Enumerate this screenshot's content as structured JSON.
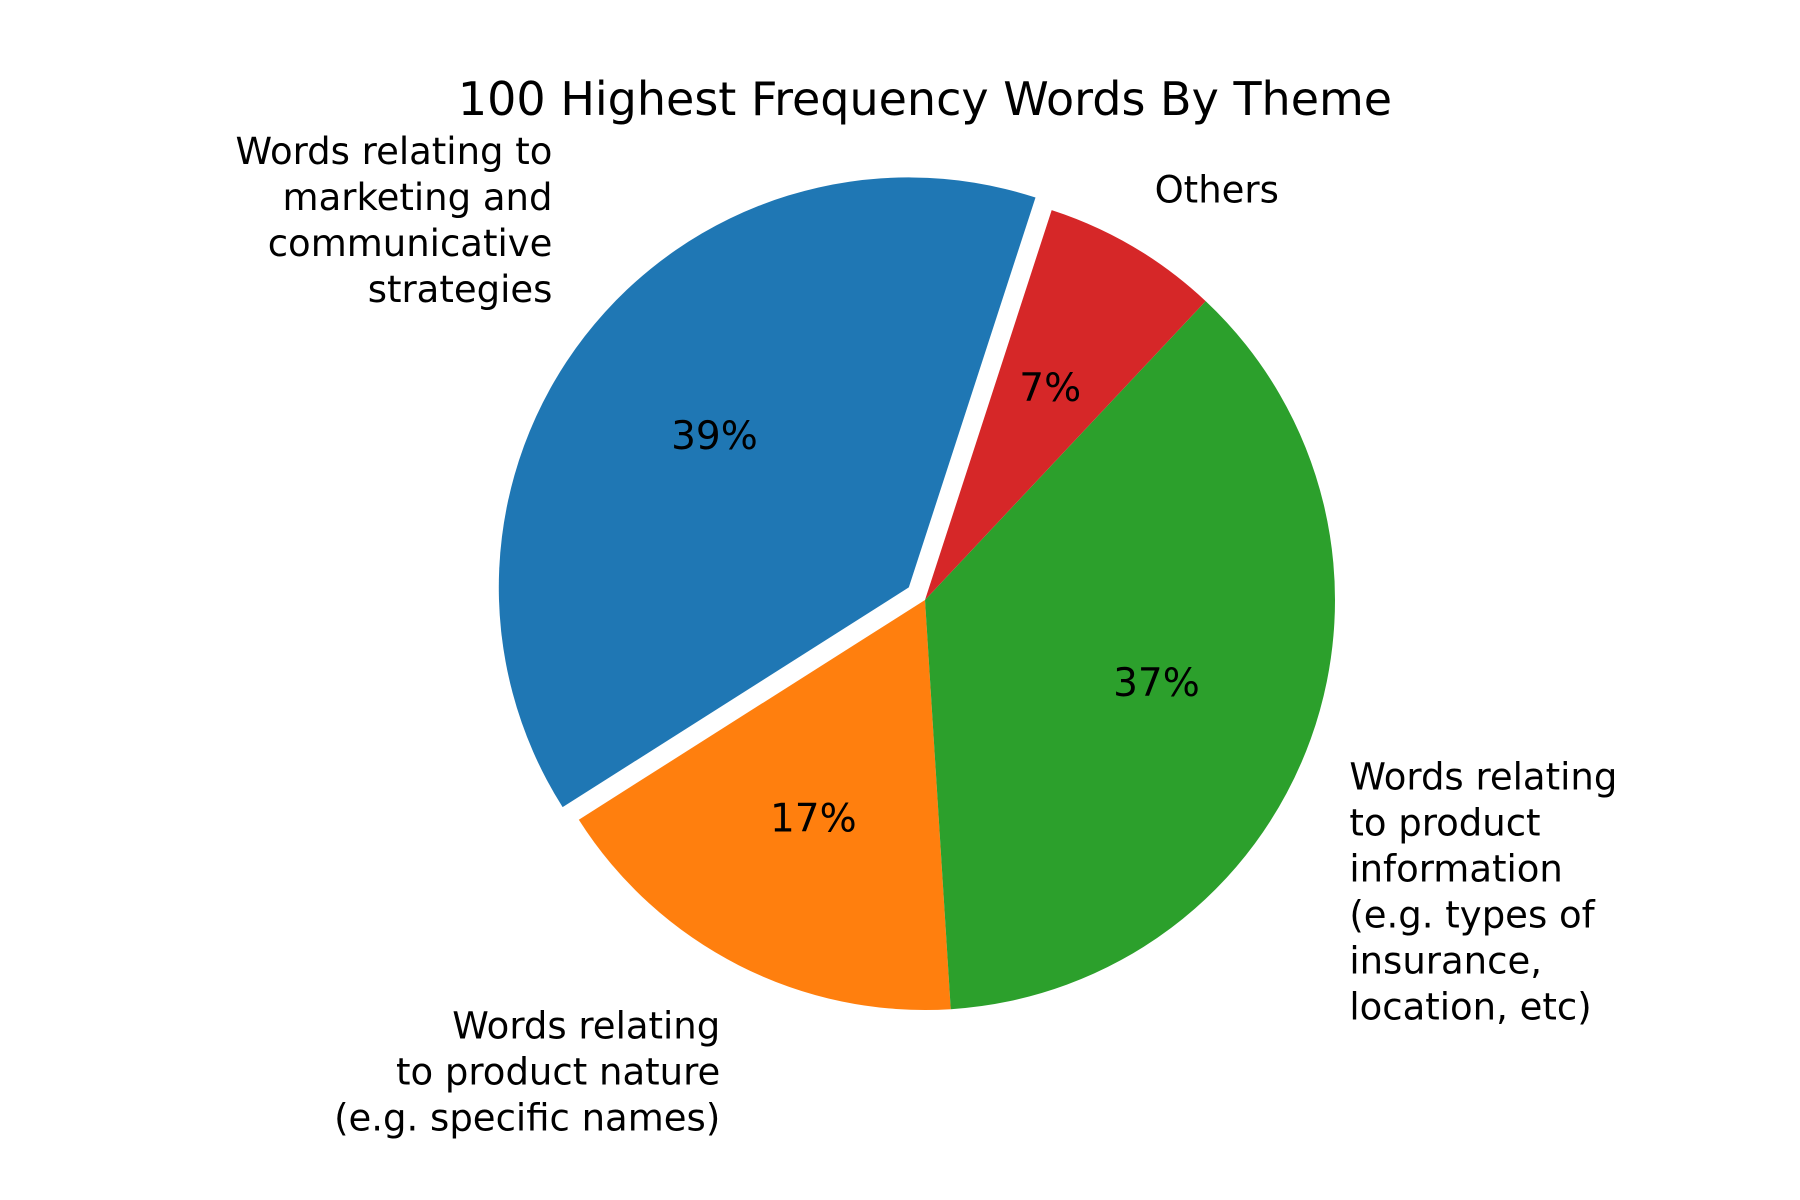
{
  "chart_data": {
    "type": "pie",
    "title": "100 Highest Frequency Words By Theme",
    "start_angle_deg": 72,
    "direction": "counterclockwise",
    "slices": [
      {
        "name": "Words relating to marketing and communicative strategies",
        "label_lines": [
          "Words relating to",
          "marketing and",
          "communicative",
          "strategies"
        ],
        "value": 39,
        "pct_label": "39%",
        "color": "#1f77b4",
        "exploded": true
      },
      {
        "name": "Words relating to product nature (e.g. specific names)",
        "label_lines": [
          "Words relating",
          "to product nature",
          "(e.g. specific names)"
        ],
        "value": 17,
        "pct_label": "17%",
        "color": "#ff7f0e",
        "exploded": false
      },
      {
        "name": "Words relating to product information (e.g. types of insurance, location, etc)",
        "label_lines": [
          "Words relating",
          "to product",
          "information",
          "(e.g. types of",
          "insurance,",
          "location, etc)"
        ],
        "value": 37,
        "pct_label": "37%",
        "color": "#2ca02c",
        "exploded": false
      },
      {
        "name": "Others",
        "label_lines": [
          "Others"
        ],
        "value": 7,
        "pct_label": "7%",
        "color": "#d62728",
        "exploded": false
      }
    ]
  }
}
